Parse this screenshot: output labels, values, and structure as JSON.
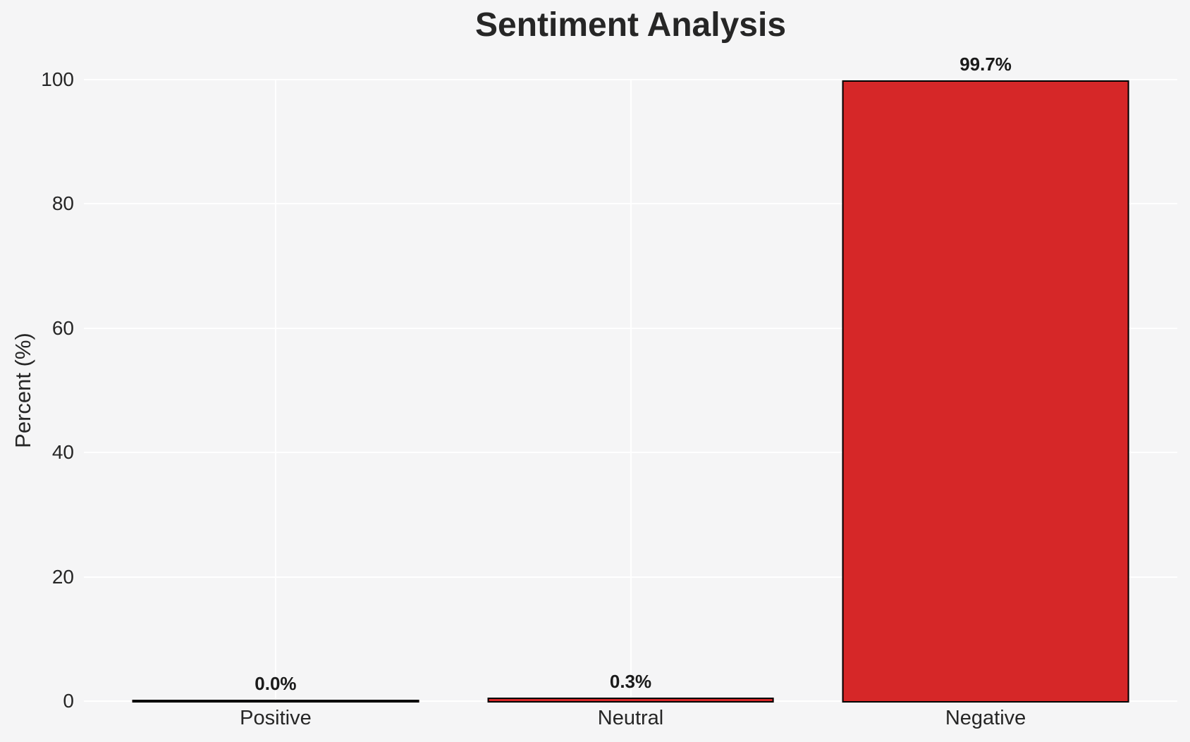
{
  "chart_data": {
    "type": "bar",
    "title": "Sentiment Analysis",
    "xlabel": "",
    "ylabel": "Percent (%)",
    "categories": [
      "Positive",
      "Neutral",
      "Negative"
    ],
    "values": [
      0.0,
      0.3,
      99.7
    ],
    "value_labels": [
      "0.0%",
      "0.3%",
      "99.7%"
    ],
    "yticks": [
      0,
      20,
      40,
      60,
      80,
      100
    ],
    "ylim": [
      0,
      100
    ],
    "xlim": [
      -0.54,
      2.54
    ],
    "bar_width": 0.8,
    "grid": "on",
    "legend": "none",
    "colors": {
      "bar_fill": "#d62728",
      "bar_edge": "#000000",
      "background": "#f5f5f6",
      "gridline": "#ffffff",
      "text": "#262626",
      "value_label_text": "#1a1a1a"
    }
  }
}
